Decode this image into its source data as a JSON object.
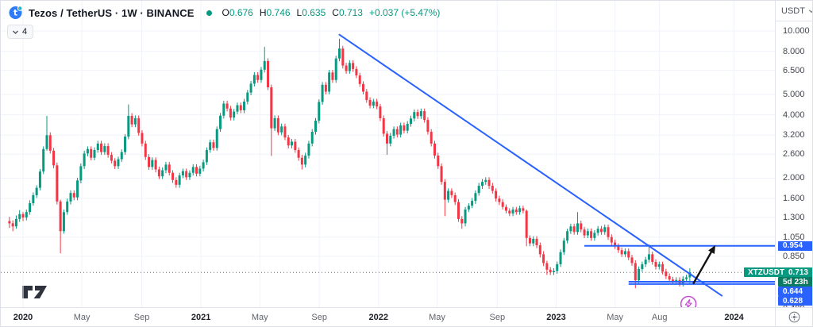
{
  "header": {
    "title": "Tezos / TetherUS · 1W · BINANCE",
    "ohlc": {
      "o_label": "O",
      "o": "0.676",
      "h_label": "H",
      "h": "0.746",
      "l_label": "L",
      "l": "0.635",
      "c_label": "C",
      "c": "0.713",
      "change": "+0.037 (+5.47%)"
    },
    "collapsed_indicators_count": "4",
    "status_dot_color": "#089981"
  },
  "price_axis": {
    "currency": "USDT",
    "ticks": [
      10.0,
      8.0,
      6.5,
      5.0,
      4.0,
      3.2,
      2.6,
      2.0,
      1.6,
      1.3,
      1.05,
      0.85,
      0.48
    ],
    "tags": {
      "resistance": {
        "text": "0.954",
        "price": 0.954,
        "bg": "#2962ff"
      },
      "symbol": "XTZUSDT",
      "last_price": {
        "text": "0.713",
        "price": 0.713,
        "bg": "#089981"
      },
      "countdown": {
        "text": "5d 23h",
        "bg": "#0a7a62"
      },
      "support_upper": {
        "text": "0.644",
        "price": 0.644,
        "bg": "#2962ff"
      },
      "support_lower": {
        "text": "0.628",
        "price": 0.628,
        "bg": "#2962ff"
      }
    }
  },
  "time_axis": {
    "ticks": [
      {
        "label": "2020",
        "week": 0,
        "year": true
      },
      {
        "label": "May",
        "week": 17.3
      },
      {
        "label": "Sep",
        "week": 34.9
      },
      {
        "label": "2021",
        "week": 52.3,
        "year": true
      },
      {
        "label": "May",
        "week": 69.6
      },
      {
        "label": "Sep",
        "week": 87.1
      },
      {
        "label": "2022",
        "week": 104.5,
        "year": true
      },
      {
        "label": "May",
        "week": 121.7
      },
      {
        "label": "Sep",
        "week": 139.4
      },
      {
        "label": "2023",
        "week": 156.7,
        "year": true
      },
      {
        "label": "May",
        "week": 174.0
      },
      {
        "label": "Aug",
        "week": 187.1
      },
      {
        "label": "2024",
        "week": 209.0,
        "year": true
      }
    ]
  },
  "icons": {
    "logo": "tezos-logo",
    "collapse": "chevron-down",
    "currency_caret": "chevron-down",
    "scale_settings": "gear",
    "event_marker": "lightning",
    "watermark": "tradingview-logo"
  },
  "colors": {
    "up": "#089981",
    "down": "#f23645",
    "drawing_blue": "#2962ff",
    "arrow_black": "#111111",
    "event_purple": "#c44bd1",
    "grid": "#f0f3fa",
    "axis_border": "#e0e3eb",
    "text_dark": "#131722"
  },
  "chart_data": {
    "type": "candlestick",
    "title": "XTZUSDT",
    "interval": "1W",
    "exchange": "BINANCE",
    "price_scale": "log",
    "ylim": [
      0.45,
      10.6
    ],
    "x_range_weeks": [
      -4,
      217
    ],
    "start_week": -4,
    "legend_note": "weekly OHLC estimated from chart; last candle exact per legend",
    "candles": [
      [
        1.25,
        1.31,
        1.16,
        1.22
      ],
      [
        1.22,
        1.26,
        1.12,
        1.18
      ],
      [
        1.18,
        1.33,
        1.15,
        1.28
      ],
      [
        1.28,
        1.41,
        1.24,
        1.35
      ],
      [
        1.35,
        1.38,
        1.25,
        1.3
      ],
      [
        1.3,
        1.42,
        1.26,
        1.38
      ],
      [
        1.38,
        1.57,
        1.34,
        1.52
      ],
      [
        1.52,
        1.71,
        1.48,
        1.66
      ],
      [
        1.66,
        1.85,
        1.61,
        1.8
      ],
      [
        1.8,
        2.21,
        1.75,
        2.15
      ],
      [
        2.15,
        2.83,
        2.09,
        2.75
      ],
      [
        2.75,
        3.95,
        2.7,
        3.2
      ],
      [
        3.2,
        3.3,
        2.62,
        2.7
      ],
      [
        2.7,
        2.78,
        2.23,
        2.3
      ],
      [
        2.3,
        2.37,
        1.5,
        1.55
      ],
      [
        1.55,
        1.58,
        0.88,
        1.12
      ],
      [
        1.12,
        1.42,
        1.09,
        1.38
      ],
      [
        1.38,
        1.6,
        1.34,
        1.55
      ],
      [
        1.55,
        1.75,
        1.5,
        1.7
      ],
      [
        1.7,
        1.75,
        1.57,
        1.62
      ],
      [
        1.62,
        2.01,
        1.57,
        1.95
      ],
      [
        1.95,
        2.35,
        1.89,
        2.28
      ],
      [
        2.28,
        2.7,
        2.21,
        2.62
      ],
      [
        2.62,
        2.83,
        2.54,
        2.75
      ],
      [
        2.75,
        2.83,
        2.43,
        2.5
      ],
      [
        2.5,
        2.8,
        2.43,
        2.72
      ],
      [
        2.72,
        3.01,
        2.64,
        2.92
      ],
      [
        2.92,
        3.01,
        2.58,
        2.66
      ],
      [
        2.66,
        2.93,
        2.58,
        2.84
      ],
      [
        2.84,
        2.93,
        2.5,
        2.58
      ],
      [
        2.58,
        2.66,
        2.35,
        2.42
      ],
      [
        2.42,
        2.49,
        2.21,
        2.28
      ],
      [
        2.28,
        2.53,
        2.21,
        2.46
      ],
      [
        2.46,
        2.74,
        2.39,
        2.66
      ],
      [
        2.66,
        3.24,
        2.58,
        3.15
      ],
      [
        3.15,
        4.48,
        3.06,
        3.95
      ],
      [
        3.95,
        4.07,
        3.49,
        3.6
      ],
      [
        3.6,
        3.97,
        3.49,
        3.85
      ],
      [
        3.85,
        3.97,
        3.18,
        3.28
      ],
      [
        3.28,
        3.38,
        2.83,
        2.92
      ],
      [
        2.92,
        3.01,
        2.44,
        2.52
      ],
      [
        2.52,
        2.6,
        2.19,
        2.26
      ],
      [
        2.26,
        2.51,
        2.19,
        2.44
      ],
      [
        2.44,
        2.51,
        2.13,
        2.2
      ],
      [
        2.2,
        2.27,
        1.98,
        2.04
      ],
      [
        2.04,
        2.25,
        1.98,
        2.18
      ],
      [
        2.18,
        2.39,
        2.11,
        2.32
      ],
      [
        2.32,
        2.39,
        2.06,
        2.12
      ],
      [
        2.12,
        2.18,
        1.9,
        1.96
      ],
      [
        1.96,
        2.02,
        1.8,
        1.86
      ],
      [
        1.86,
        2.12,
        1.8,
        2.06
      ],
      [
        2.06,
        2.22,
        2.0,
        2.16
      ],
      [
        2.16,
        2.22,
        1.96,
        2.02
      ],
      [
        2.02,
        2.18,
        1.96,
        2.12
      ],
      [
        2.12,
        2.33,
        2.06,
        2.26
      ],
      [
        2.26,
        2.33,
        2.04,
        2.1
      ],
      [
        2.1,
        2.29,
        2.04,
        2.22
      ],
      [
        2.22,
        2.45,
        2.15,
        2.38
      ],
      [
        2.38,
        2.8,
        2.31,
        2.72
      ],
      [
        2.72,
        3.05,
        2.64,
        2.96
      ],
      [
        2.96,
        3.05,
        2.7,
        2.78
      ],
      [
        2.78,
        3.52,
        2.7,
        3.42
      ],
      [
        3.42,
        4.08,
        3.32,
        3.96
      ],
      [
        3.96,
        4.66,
        3.84,
        4.52
      ],
      [
        4.52,
        4.66,
        4.15,
        4.28
      ],
      [
        4.28,
        4.41,
        3.76,
        3.88
      ],
      [
        3.88,
        4.26,
        3.76,
        4.14
      ],
      [
        4.14,
        4.57,
        4.02,
        4.44
      ],
      [
        4.44,
        4.57,
        4.07,
        4.2
      ],
      [
        4.2,
        4.76,
        4.07,
        4.62
      ],
      [
        4.62,
        5.25,
        4.48,
        5.1
      ],
      [
        5.1,
        5.79,
        4.95,
        5.62
      ],
      [
        5.62,
        6.37,
        5.45,
        6.18
      ],
      [
        6.18,
        6.37,
        5.67,
        5.85
      ],
      [
        5.85,
        6.75,
        5.67,
        6.55
      ],
      [
        6.55,
        8.4,
        6.35,
        7.2
      ],
      [
        7.2,
        7.42,
        5.24,
        5.4
      ],
      [
        5.4,
        5.56,
        2.55,
        3.45
      ],
      [
        3.45,
        3.97,
        3.35,
        3.85
      ],
      [
        3.85,
        3.97,
        3.2,
        3.3
      ],
      [
        3.3,
        3.63,
        3.2,
        3.52
      ],
      [
        3.52,
        3.63,
        3.03,
        3.12
      ],
      [
        3.12,
        3.21,
        2.77,
        2.86
      ],
      [
        2.86,
        3.07,
        2.77,
        2.98
      ],
      [
        2.98,
        3.07,
        2.64,
        2.72
      ],
      [
        2.72,
        2.8,
        2.42,
        2.5
      ],
      [
        2.5,
        2.58,
        2.2,
        2.32
      ],
      [
        2.32,
        2.64,
        2.25,
        2.56
      ],
      [
        2.56,
        3.01,
        2.48,
        2.92
      ],
      [
        2.92,
        3.42,
        2.83,
        3.32
      ],
      [
        3.32,
        3.86,
        3.22,
        3.75
      ],
      [
        3.75,
        4.74,
        3.64,
        4.6
      ],
      [
        4.6,
        5.72,
        4.46,
        5.55
      ],
      [
        5.55,
        5.72,
        5.0,
        5.15
      ],
      [
        5.15,
        6.54,
        5.0,
        6.35
      ],
      [
        6.35,
        6.54,
        5.67,
        5.85
      ],
      [
        5.85,
        7.62,
        5.67,
        7.4
      ],
      [
        7.4,
        9.18,
        7.18,
        8.25
      ],
      [
        8.25,
        8.5,
        6.64,
        6.85
      ],
      [
        6.85,
        7.06,
        6.26,
        6.45
      ],
      [
        6.45,
        7.26,
        6.26,
        7.05
      ],
      [
        7.05,
        7.26,
        6.4,
        6.6
      ],
      [
        6.6,
        6.8,
        5.97,
        6.15
      ],
      [
        6.15,
        6.33,
        5.43,
        5.6
      ],
      [
        5.6,
        5.77,
        5.0,
        5.15
      ],
      [
        5.15,
        5.3,
        4.56,
        4.7
      ],
      [
        4.7,
        4.84,
        4.29,
        4.42
      ],
      [
        4.42,
        4.76,
        4.29,
        4.62
      ],
      [
        4.62,
        4.76,
        4.25,
        4.38
      ],
      [
        4.38,
        4.51,
        3.73,
        3.85
      ],
      [
        3.85,
        3.97,
        3.15,
        3.25
      ],
      [
        3.25,
        3.35,
        2.58,
        2.92
      ],
      [
        2.92,
        3.28,
        2.83,
        3.18
      ],
      [
        3.18,
        3.52,
        3.08,
        3.42
      ],
      [
        3.42,
        3.52,
        3.12,
        3.22
      ],
      [
        3.22,
        3.67,
        3.12,
        3.56
      ],
      [
        3.56,
        3.67,
        3.26,
        3.36
      ],
      [
        3.36,
        3.73,
        3.26,
        3.62
      ],
      [
        3.62,
        3.96,
        3.51,
        3.84
      ],
      [
        3.84,
        4.24,
        3.72,
        4.12
      ],
      [
        4.12,
        4.24,
        3.82,
        3.94
      ],
      [
        3.94,
        4.28,
        3.82,
        4.16
      ],
      [
        4.16,
        4.28,
        3.67,
        3.78
      ],
      [
        3.78,
        3.89,
        3.22,
        3.32
      ],
      [
        3.32,
        3.42,
        2.83,
        2.92
      ],
      [
        2.92,
        3.01,
        2.48,
        2.56
      ],
      [
        2.56,
        2.64,
        2.21,
        2.28
      ],
      [
        2.28,
        2.35,
        1.86,
        1.92
      ],
      [
        1.92,
        1.98,
        1.32,
        1.58
      ],
      [
        1.58,
        1.79,
        1.53,
        1.74
      ],
      [
        1.74,
        1.79,
        1.61,
        1.66
      ],
      [
        1.66,
        1.71,
        1.49,
        1.54
      ],
      [
        1.54,
        1.59,
        1.24,
        1.28
      ],
      [
        1.28,
        1.32,
        1.15,
        1.22
      ],
      [
        1.22,
        1.46,
        1.18,
        1.42
      ],
      [
        1.42,
        1.52,
        1.38,
        1.48
      ],
      [
        1.48,
        1.61,
        1.44,
        1.56
      ],
      [
        1.56,
        1.75,
        1.51,
        1.7
      ],
      [
        1.7,
        1.9,
        1.65,
        1.84
      ],
      [
        1.84,
        1.98,
        1.78,
        1.92
      ],
      [
        1.92,
        2.02,
        1.86,
        1.96
      ],
      [
        1.96,
        2.02,
        1.78,
        1.84
      ],
      [
        1.84,
        1.9,
        1.69,
        1.74
      ],
      [
        1.74,
        1.79,
        1.55,
        1.6
      ],
      [
        1.6,
        1.65,
        1.49,
        1.54
      ],
      [
        1.54,
        1.59,
        1.42,
        1.46
      ],
      [
        1.46,
        1.5,
        1.36,
        1.4
      ],
      [
        1.4,
        1.44,
        1.32,
        1.36
      ],
      [
        1.36,
        1.46,
        1.32,
        1.42
      ],
      [
        1.42,
        1.46,
        1.34,
        1.38
      ],
      [
        1.38,
        1.48,
        1.34,
        1.44
      ],
      [
        1.44,
        1.48,
        1.36,
        1.4
      ],
      [
        1.4,
        1.42,
        0.95,
        1.04
      ],
      [
        1.04,
        1.07,
        0.95,
        0.98
      ],
      [
        0.98,
        1.06,
        0.95,
        1.03
      ],
      [
        1.03,
        1.06,
        0.93,
        0.96
      ],
      [
        0.96,
        0.99,
        0.84,
        0.87
      ],
      [
        0.87,
        0.9,
        0.765,
        0.79
      ],
      [
        0.79,
        0.81,
        0.695,
        0.735
      ],
      [
        0.735,
        0.757,
        0.693,
        0.715
      ],
      [
        0.715,
        0.747,
        0.693,
        0.725
      ],
      [
        0.725,
        0.803,
        0.703,
        0.78
      ],
      [
        0.78,
        0.917,
        0.757,
        0.89
      ],
      [
        0.89,
        1.04,
        0.863,
        1.01
      ],
      [
        1.01,
        1.15,
        0.98,
        1.12
      ],
      [
        1.12,
        1.215,
        1.086,
        1.18
      ],
      [
        1.18,
        1.215,
        1.077,
        1.11
      ],
      [
        1.11,
        1.38,
        1.077,
        1.22
      ],
      [
        1.22,
        1.257,
        1.106,
        1.14
      ],
      [
        1.14,
        1.174,
        1.038,
        1.07
      ],
      [
        1.07,
        1.154,
        1.038,
        1.12
      ],
      [
        1.12,
        1.154,
        1.009,
        1.04
      ],
      [
        1.04,
        1.133,
        1.009,
        1.1
      ],
      [
        1.1,
        1.185,
        1.067,
        1.15
      ],
      [
        1.15,
        1.185,
        1.077,
        1.11
      ],
      [
        1.11,
        1.205,
        1.077,
        1.17
      ],
      [
        1.17,
        1.205,
        1.019,
        1.05
      ],
      [
        1.05,
        1.082,
        0.96,
        0.99
      ],
      [
        0.99,
        1.02,
        0.922,
        0.95
      ],
      [
        0.95,
        0.979,
        0.883,
        0.91
      ],
      [
        0.91,
        0.937,
        0.844,
        0.87
      ],
      [
        0.87,
        0.927,
        0.844,
        0.9
      ],
      [
        0.9,
        0.927,
        0.815,
        0.84
      ],
      [
        0.84,
        0.865,
        0.766,
        0.79
      ],
      [
        0.79,
        0.814,
        0.6,
        0.655
      ],
      [
        0.655,
        0.762,
        0.635,
        0.74
      ],
      [
        0.74,
        0.803,
        0.718,
        0.78
      ],
      [
        0.78,
        0.845,
        0.757,
        0.82
      ],
      [
        0.82,
        0.97,
        0.795,
        0.87
      ],
      [
        0.87,
        0.896,
        0.776,
        0.8
      ],
      [
        0.8,
        0.824,
        0.737,
        0.76
      ],
      [
        0.76,
        0.803,
        0.737,
        0.78
      ],
      [
        0.78,
        0.803,
        0.698,
        0.72
      ],
      [
        0.72,
        0.742,
        0.664,
        0.685
      ],
      [
        0.685,
        0.706,
        0.64,
        0.66
      ],
      [
        0.66,
        0.68,
        0.626,
        0.645
      ],
      [
        0.645,
        0.677,
        0.626,
        0.657
      ],
      [
        0.657,
        0.677,
        0.612,
        0.631
      ],
      [
        0.631,
        0.684,
        0.612,
        0.664
      ],
      [
        0.664,
        0.696,
        0.644,
        0.676
      ],
      [
        0.676,
        0.746,
        0.635,
        0.713
      ]
    ],
    "last_candle": {
      "open": 0.676,
      "high": 0.746,
      "low": 0.635,
      "close": 0.713
    },
    "annotations": {
      "trendline": {
        "from": {
          "week": 93,
          "price": 9.6
        },
        "to": {
          "week": 205.4,
          "price": 0.553
        },
        "color": "#2962ff"
      },
      "hlines": [
        {
          "price": 0.954,
          "from_week": 165,
          "color": "#2962ff"
        },
        {
          "price": 0.644,
          "from_week": 178,
          "color": "#2962ff"
        },
        {
          "price": 0.628,
          "from_week": 178,
          "color": "#2962ff"
        }
      ],
      "arrow": {
        "from": {
          "week": 197,
          "price": 0.63
        },
        "to": {
          "week": 203.5,
          "price": 0.96
        },
        "color": "#111111"
      },
      "event_circle": {
        "week": 195.6,
        "price": 0.505,
        "color": "#c44bd1",
        "icon": "lightning"
      },
      "price_line": {
        "price": 0.713,
        "color": "#089981",
        "style": "dotted"
      }
    }
  }
}
